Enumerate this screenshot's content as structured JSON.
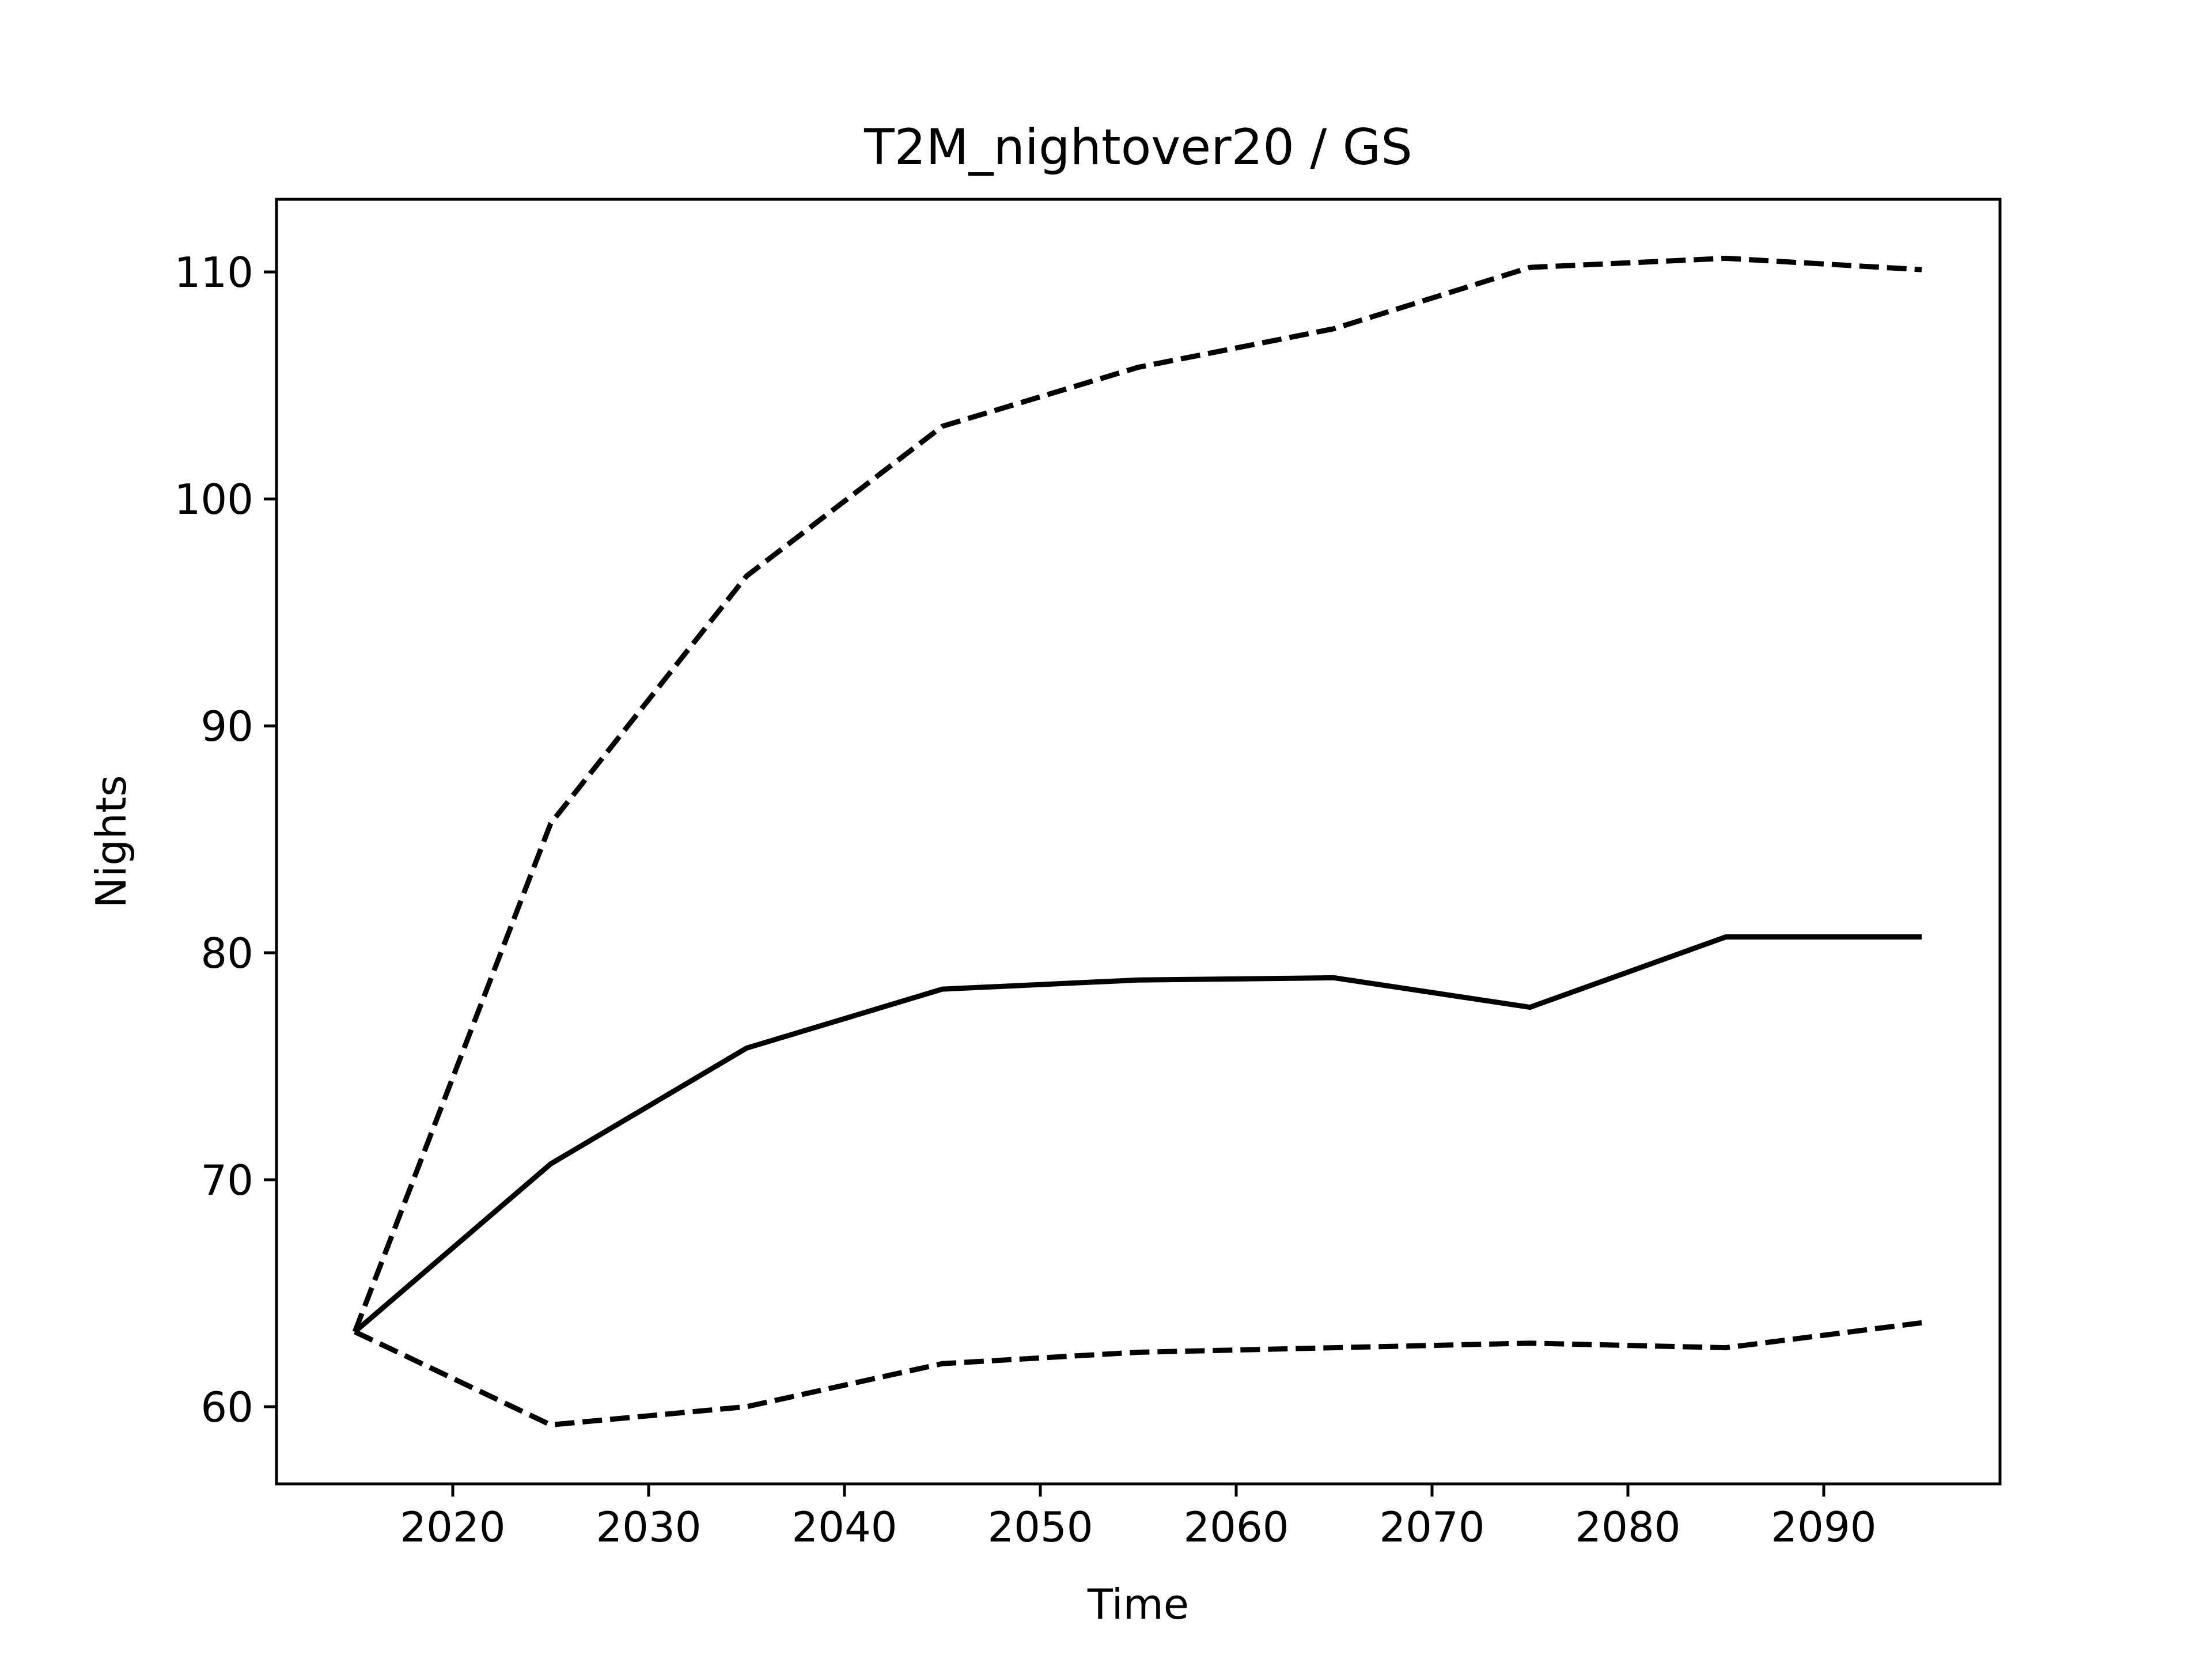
{
  "chart_data": {
    "type": "line",
    "title": "T2M_nightover20 / GS",
    "xlabel": "Time",
    "ylabel": "Nights",
    "xlim": [
      2011,
      2099
    ],
    "ylim": [
      56.6,
      113.2
    ],
    "xticks": [
      2020,
      2030,
      2040,
      2050,
      2060,
      2070,
      2080,
      2090
    ],
    "yticks": [
      60,
      70,
      80,
      90,
      100,
      110
    ],
    "grid": false,
    "legend": "none",
    "x": [
      2015,
      2025,
      2035,
      2045,
      2055,
      2065,
      2075,
      2085,
      2095
    ],
    "series": [
      {
        "style": "dashed",
        "color": "#000000",
        "values": [
          63.3,
          85.7,
          96.6,
          103.2,
          105.8,
          107.5,
          110.2,
          110.6,
          110.1
        ]
      },
      {
        "style": "solid",
        "color": "#000000",
        "values": [
          63.3,
          70.7,
          75.8,
          78.4,
          78.8,
          78.9,
          77.6,
          80.7,
          80.7
        ]
      },
      {
        "style": "dashed",
        "color": "#000000",
        "values": [
          63.3,
          59.2,
          60.0,
          61.9,
          62.4,
          62.6,
          62.8,
          62.6,
          63.7
        ]
      }
    ]
  }
}
